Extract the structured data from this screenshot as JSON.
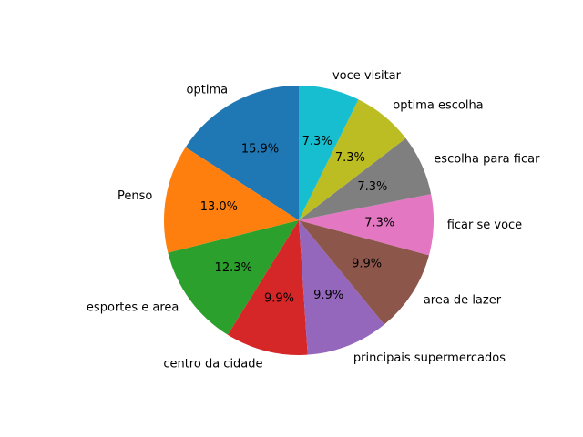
{
  "chart_data": {
    "type": "pie",
    "title": "",
    "start_angle_deg": 90,
    "direction": "counterclockwise",
    "legend": "none",
    "slices": [
      {
        "label": "optima",
        "value": 15.9,
        "pct_label": "15.9%",
        "color": "#1f77b4"
      },
      {
        "label": "Penso",
        "value": 13.0,
        "pct_label": "13.0%",
        "color": "#ff7f0e"
      },
      {
        "label": "esportes e area",
        "value": 12.3,
        "pct_label": "12.3%",
        "color": "#2ca02c"
      },
      {
        "label": "centro da cidade",
        "value": 9.9,
        "pct_label": "9.9%",
        "color": "#d62728"
      },
      {
        "label": "principais supermercados",
        "value": 9.9,
        "pct_label": "9.9%",
        "color": "#9467bd"
      },
      {
        "label": "area de lazer",
        "value": 9.9,
        "pct_label": "9.9%",
        "color": "#8c564b"
      },
      {
        "label": "ficar se voce",
        "value": 7.3,
        "pct_label": "7.3%",
        "color": "#e377c2"
      },
      {
        "label": "escolha para ficar",
        "value": 7.3,
        "pct_label": "7.3%",
        "color": "#7f7f7f"
      },
      {
        "label": "optima escolha",
        "value": 7.3,
        "pct_label": "7.3%",
        "color": "#bcbd22"
      },
      {
        "label": "voce visitar",
        "value": 7.3,
        "pct_label": "7.3%",
        "color": "#17becf"
      }
    ]
  }
}
